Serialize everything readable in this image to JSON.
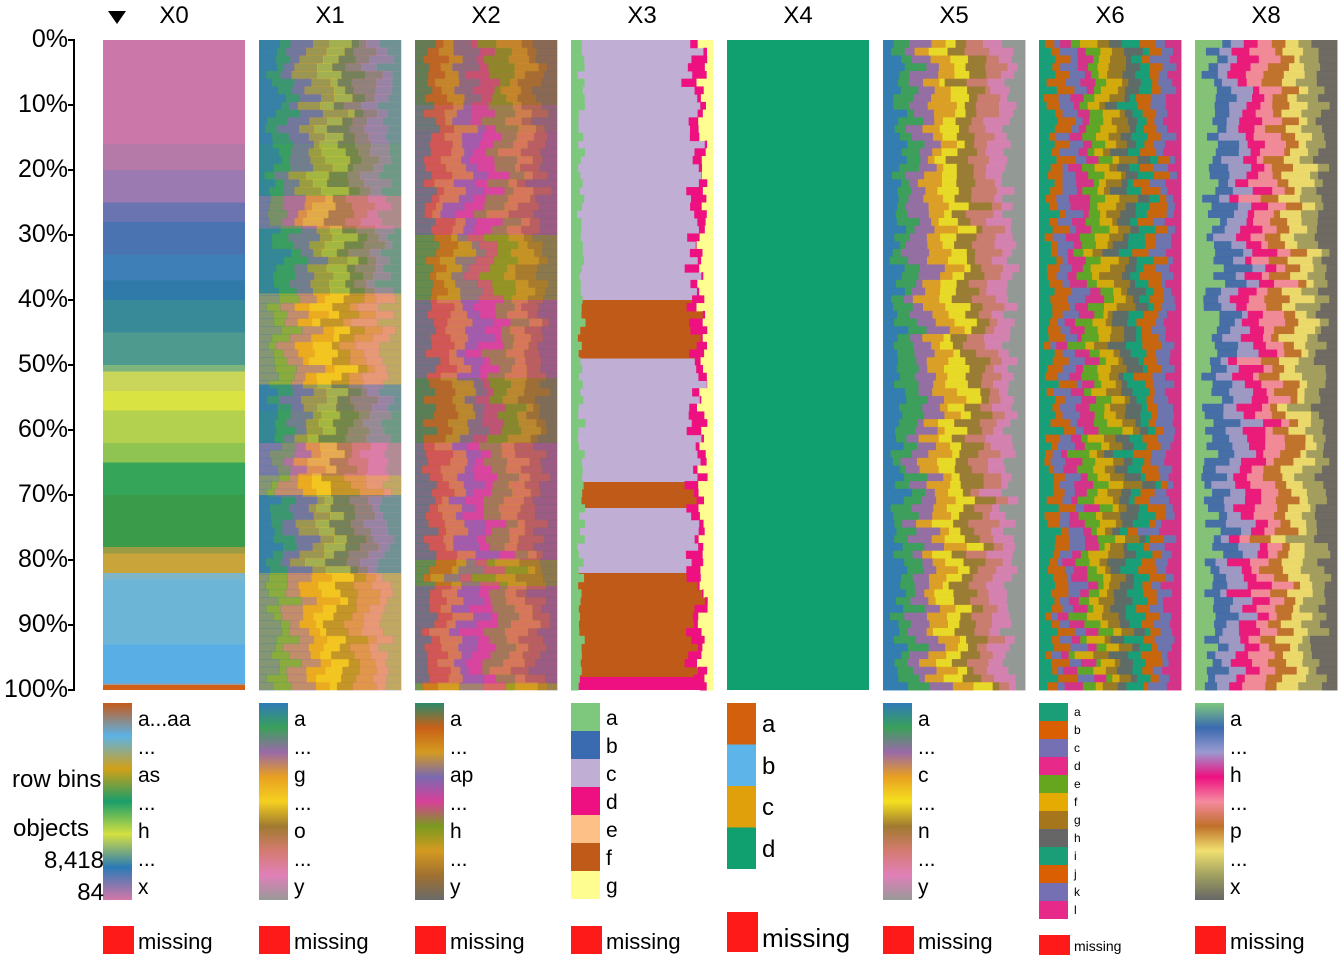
{
  "chart_data": {
    "type": "tableplot",
    "sort_column": "X0",
    "sort_direction": "descending",
    "y_axis": {
      "ticks": [
        "0%",
        "10%",
        "20%",
        "30%",
        "40%",
        "50%",
        "60%",
        "70%",
        "80%",
        "90%",
        "100%"
      ]
    },
    "info": {
      "row_bins_label": "row bins",
      "objects_label": "objects",
      "objects_count": "8,418",
      "bins_count": "84"
    },
    "missing_label": "missing",
    "missing_color": "#ff1a1a",
    "columns": [
      {
        "name": "X0",
        "legend_type": "gradient",
        "legend_labels": [
          "a...aa",
          "...",
          "as",
          "...",
          "h",
          "...",
          "x"
        ],
        "gradient_colors": [
          "#c45a1a",
          "#5cb3e6",
          "#d2a018",
          "#1a9e6a",
          "#d4e040",
          "#2a7ab5",
          "#d477a8"
        ],
        "bins": [
          {
            "color": "#cc77a9",
            "from": 0,
            "to": 16
          },
          {
            "color": "#b57aa8",
            "from": 16,
            "to": 20
          },
          {
            "color": "#9a7ab0",
            "from": 20,
            "to": 25
          },
          {
            "color": "#6a74b0",
            "from": 25,
            "to": 28
          },
          {
            "color": "#4a73b2",
            "from": 28,
            "to": 33
          },
          {
            "color": "#3f7fb8",
            "from": 33,
            "to": 37
          },
          {
            "color": "#2f7aa8",
            "from": 37,
            "to": 40
          },
          {
            "color": "#388a99",
            "from": 40,
            "to": 45
          },
          {
            "color": "#4f9a8e",
            "from": 45,
            "to": 50
          },
          {
            "color": "#7db57d",
            "from": 50,
            "to": 51
          },
          {
            "color": "#c9d65a",
            "from": 51,
            "to": 54
          },
          {
            "color": "#d9e442",
            "from": 54,
            "to": 57
          },
          {
            "color": "#b3d14e",
            "from": 57,
            "to": 62
          },
          {
            "color": "#8fc452",
            "from": 62,
            "to": 65
          },
          {
            "color": "#35a55a",
            "from": 65,
            "to": 70
          },
          {
            "color": "#3a9b4a",
            "from": 70,
            "to": 78
          },
          {
            "color": "#9c9c44",
            "from": 78,
            "to": 79
          },
          {
            "color": "#c9a43a",
            "from": 79,
            "to": 82
          },
          {
            "color": "#7fb5c9",
            "from": 82,
            "to": 83
          },
          {
            "color": "#6db5d6",
            "from": 83,
            "to": 93
          },
          {
            "color": "#5aaee6",
            "from": 93,
            "to": 99
          },
          {
            "color": "#8a9ab0",
            "from": 99,
            "to": 99.2
          },
          {
            "color": "#d06018",
            "from": 99.2,
            "to": 100
          }
        ]
      },
      {
        "name": "X1",
        "legend_type": "gradient",
        "legend_labels": [
          "a",
          "...",
          "g",
          "...",
          "o",
          "...",
          "y"
        ],
        "gradient_colors": [
          "#2f7ab8",
          "#3aa05a",
          "#9a6aa8",
          "#e8a020",
          "#f5d020",
          "#a07a30",
          "#d47a70",
          "#e080b8",
          "#999999"
        ],
        "bins": [
          {
            "color": "#3e8a8e",
            "from": 0,
            "to": 16
          },
          {
            "color": "#3a9a6a",
            "from": 16,
            "to": 24
          },
          {
            "color": "#c77a7a",
            "from": 24,
            "to": 29
          },
          {
            "color": "#3a9a6a",
            "from": 29,
            "to": 39
          },
          {
            "color": "#f0b820",
            "from": 39,
            "to": 53
          },
          {
            "color": "#3e8a8e",
            "from": 53,
            "to": 57
          },
          {
            "color": "#3a9a6a",
            "from": 57,
            "to": 62
          },
          {
            "color": "#d47a90",
            "from": 62,
            "to": 67
          },
          {
            "color": "#f0b820",
            "from": 67,
            "to": 70
          },
          {
            "color": "#3e8a8e",
            "from": 70,
            "to": 82
          },
          {
            "color": "#f0b820",
            "from": 82,
            "to": 100
          }
        ]
      },
      {
        "name": "X2",
        "legend_type": "gradient",
        "legend_labels": [
          "a",
          "...",
          "ap",
          "...",
          "h",
          "...",
          "y"
        ],
        "gradient_colors": [
          "#2a8a6a",
          "#c86018",
          "#d49a20",
          "#7a6ab0",
          "#d8409a",
          "#7a9a20",
          "#d49a20",
          "#a07030",
          "#6a6a6a"
        ],
        "bins": [
          {
            "color": "#b0683a",
            "from": 0,
            "to": 10
          },
          {
            "color": "#c85a8a",
            "from": 10,
            "to": 14
          },
          {
            "color": "#d94aa4",
            "from": 14,
            "to": 30
          },
          {
            "color": "#b48a2a",
            "from": 30,
            "to": 40
          },
          {
            "color": "#d94aa4",
            "from": 40,
            "to": 52
          },
          {
            "color": "#9a7040",
            "from": 52,
            "to": 62
          },
          {
            "color": "#d94aa4",
            "from": 62,
            "to": 80
          },
          {
            "color": "#b48a2a",
            "from": 80,
            "to": 84
          },
          {
            "color": "#d94aa4",
            "from": 84,
            "to": 99
          },
          {
            "color": "#d4a020",
            "from": 99,
            "to": 100
          }
        ]
      },
      {
        "name": "X3",
        "legend_type": "categorical",
        "legend_labels": [
          "a",
          "b",
          "c",
          "d",
          "e",
          "f",
          "g"
        ],
        "category_colors": [
          "#7ec87e",
          "#3a6ab0",
          "#c0aed4",
          "#ee1080",
          "#fdc086",
          "#c05a18",
          "#fefe90"
        ],
        "bins": [
          {
            "color": "#c0aed4",
            "from": 0,
            "to": 40
          },
          {
            "color": "#c05a18",
            "from": 40,
            "to": 49
          },
          {
            "color": "#c0aed4",
            "from": 49,
            "to": 68
          },
          {
            "color": "#c05a18",
            "from": 68,
            "to": 72
          },
          {
            "color": "#c0aed4",
            "from": 72,
            "to": 82
          },
          {
            "color": "#c05a18",
            "from": 82,
            "to": 98
          },
          {
            "color": "#ee1080",
            "from": 98,
            "to": 100
          }
        ]
      },
      {
        "name": "X4",
        "legend_type": "categorical",
        "legend_labels": [
          "a",
          "b",
          "c",
          "d"
        ],
        "category_colors": [
          "#d2600c",
          "#5cb4e8",
          "#e0a00c",
          "#10a070"
        ],
        "bins": [
          {
            "color": "#10a070",
            "from": 0,
            "to": 100
          }
        ]
      },
      {
        "name": "X5",
        "legend_type": "gradient",
        "legend_labels": [
          "a",
          "...",
          "c",
          "...",
          "n",
          "...",
          "y"
        ],
        "gradient_colors": [
          "#2f7ab8",
          "#3aa05a",
          "#9a6aa8",
          "#e8a020",
          "#f5e020",
          "#a07a30",
          "#d47a70",
          "#e080b8",
          "#999999"
        ],
        "bins": [
          {
            "color": "#5a9a6a",
            "from": 0,
            "to": 100
          }
        ]
      },
      {
        "name": "X6",
        "legend_type": "categorical",
        "legend_labels": [
          "a",
          "b",
          "c",
          "d",
          "e",
          "f",
          "g",
          "h",
          "i",
          "j",
          "k",
          "l"
        ],
        "category_colors": [
          "#1a9e77",
          "#d95f02",
          "#7570b3",
          "#e7298a",
          "#66a61e",
          "#e6ab02",
          "#a6761d",
          "#666666",
          "#1a9e77",
          "#d95f02",
          "#7570b3",
          "#e7298a"
        ],
        "bins": [
          {
            "color": "#1a9e77",
            "from": 0,
            "to": 100
          }
        ]
      },
      {
        "name": "X8",
        "legend_type": "gradient",
        "legend_labels": [
          "a",
          "...",
          "h",
          "...",
          "p",
          "...",
          "x"
        ],
        "gradient_colors": [
          "#7ec87e",
          "#3a6ab0",
          "#9a9ad0",
          "#ee1080",
          "#f58aa0",
          "#c0702a",
          "#f0e070",
          "#a0a060",
          "#666666"
        ],
        "bins": [
          {
            "color": "#c08a40",
            "from": 0,
            "to": 100
          }
        ]
      }
    ]
  }
}
